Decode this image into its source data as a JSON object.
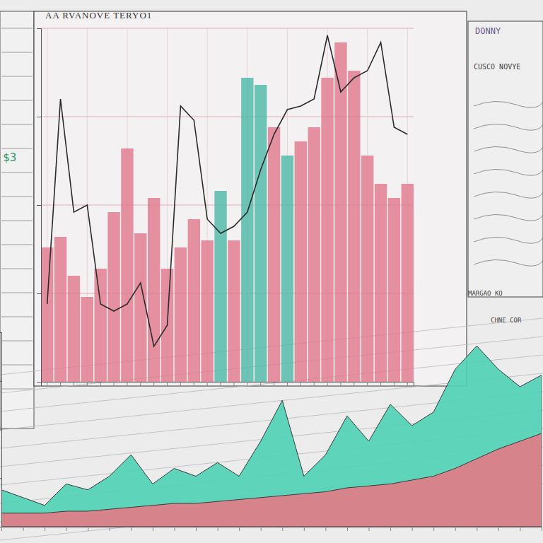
{
  "chart_data": [
    {
      "type": "bar",
      "title": "AA RVANOVE TERYO1",
      "categories": [
        null,
        null,
        null,
        null,
        null,
        null,
        null,
        null,
        null,
        null,
        null,
        null,
        null,
        null,
        null,
        null,
        null,
        null,
        null,
        null,
        null,
        null,
        null,
        null,
        null,
        null,
        null,
        null
      ],
      "series": [
        {
          "type": "bar",
          "colors": [
            "#e07a8e",
            "#e07a8e",
            "#e07a8e",
            "#e07a8e",
            "#e07a8e",
            "#e07a8e",
            "#e07a8e",
            "#e07a8e",
            "#e07a8e",
            "#e07a8e",
            "#e07a8e",
            "#e07a8e",
            "#e07a8e",
            "#4fb8a8",
            "#e07a8e",
            "#4fb8a8",
            "#4fb8a8",
            "#e07a8e",
            "#4fb8a8",
            "#e07a8e",
            "#e07a8e",
            "#e07a8e",
            "#e07a8e",
            "#e07a8e",
            "#e07a8e",
            "#e07a8e",
            "#e07a8e",
            "#e07a8e"
          ],
          "values": [
            38,
            41,
            30,
            24,
            32,
            48,
            66,
            42,
            52,
            32,
            38,
            46,
            40,
            54,
            40,
            86,
            84,
            72,
            64,
            68,
            72,
            86,
            96,
            88,
            64,
            56,
            52,
            56
          ]
        },
        {
          "type": "line",
          "color": "#2b2b2b",
          "values": [
            22,
            80,
            48,
            50,
            22,
            20,
            22,
            28,
            10,
            16,
            78,
            74,
            46,
            42,
            44,
            48,
            60,
            70,
            77,
            78,
            80,
            98,
            82,
            86,
            88,
            96,
            72,
            70
          ]
        }
      ],
      "ylim": [
        0,
        100
      ],
      "yticks": [
        0,
        25,
        50,
        75,
        100
      ],
      "grid": true,
      "tick_labels": false,
      "annotations": [
        "$3",
        "DONNY",
        "CUSCO NOVYE",
        "MARGAO KO",
        "CHNE COR"
      ]
    },
    {
      "type": "area",
      "categories": [
        null,
        null,
        null,
        null,
        null,
        null,
        null,
        null,
        null,
        null,
        null,
        null,
        null,
        null,
        null,
        null,
        null,
        null,
        null,
        null,
        null,
        null,
        null,
        null,
        null,
        null
      ],
      "series": [
        {
          "color": "#4fd1b5",
          "values": [
            19,
            15,
            11,
            22,
            19,
            26,
            37,
            22,
            30,
            26,
            33,
            26,
            44,
            65,
            26,
            37,
            57,
            44,
            63,
            52,
            59,
            81,
            93,
            81,
            72,
            78
          ]
        },
        {
          "color": "#e47a86",
          "values": [
            7,
            7,
            7,
            8,
            8,
            9,
            10,
            11,
            12,
            12,
            13,
            14,
            15,
            16,
            17,
            18,
            20,
            21,
            22,
            24,
            26,
            30,
            35,
            40,
            44,
            48
          ]
        }
      ],
      "ylim": [
        0,
        100
      ],
      "yticks": [
        0,
        25,
        50,
        75,
        100
      ],
      "grid": false,
      "tick_labels": false
    }
  ]
}
